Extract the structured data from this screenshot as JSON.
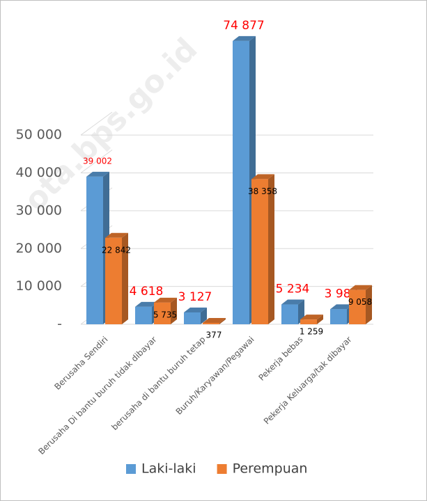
{
  "chart_data": {
    "type": "bar3d",
    "watermark": "ota.bps.go.id",
    "categories": [
      "Berusaha Sendiri",
      "Berusaha Di bantu buruh tidak dibayar",
      "berusaha di bantu buruh tetap",
      "Buruh/Karyawan/Pegawai",
      "Pekerja bebas",
      "Pekerja Keluarga/tak dibayar"
    ],
    "series": [
      {
        "name": "Laki-laki",
        "color": "#5b9bd5",
        "label_color": "#ff0000",
        "values": [
          39002,
          4618,
          3127,
          74877,
          5234,
          3987
        ],
        "value_labels": [
          "39 002",
          "4 618",
          "3 127",
          "74 877",
          "5 234",
          "3 987"
        ]
      },
      {
        "name": "Perempuan",
        "color": "#ed7d31",
        "label_color": "#000000",
        "values": [
          22842,
          5735,
          377,
          38358,
          1259,
          9058
        ],
        "value_labels": [
          "22 842",
          "5 735",
          "377",
          "38 358",
          "1 259",
          "9 058"
        ]
      }
    ],
    "ylim": [
      0,
      80000
    ],
    "yticks": [
      {
        "value": 0,
        "label": "-"
      },
      {
        "value": 10000,
        "label": "10 000"
      },
      {
        "value": 20000,
        "label": "20 000"
      },
      {
        "value": 30000,
        "label": "30 000"
      },
      {
        "value": 40000,
        "label": "40 000"
      },
      {
        "value": 50000,
        "label": "50 000"
      }
    ],
    "grid": true,
    "legend": "bottom"
  }
}
